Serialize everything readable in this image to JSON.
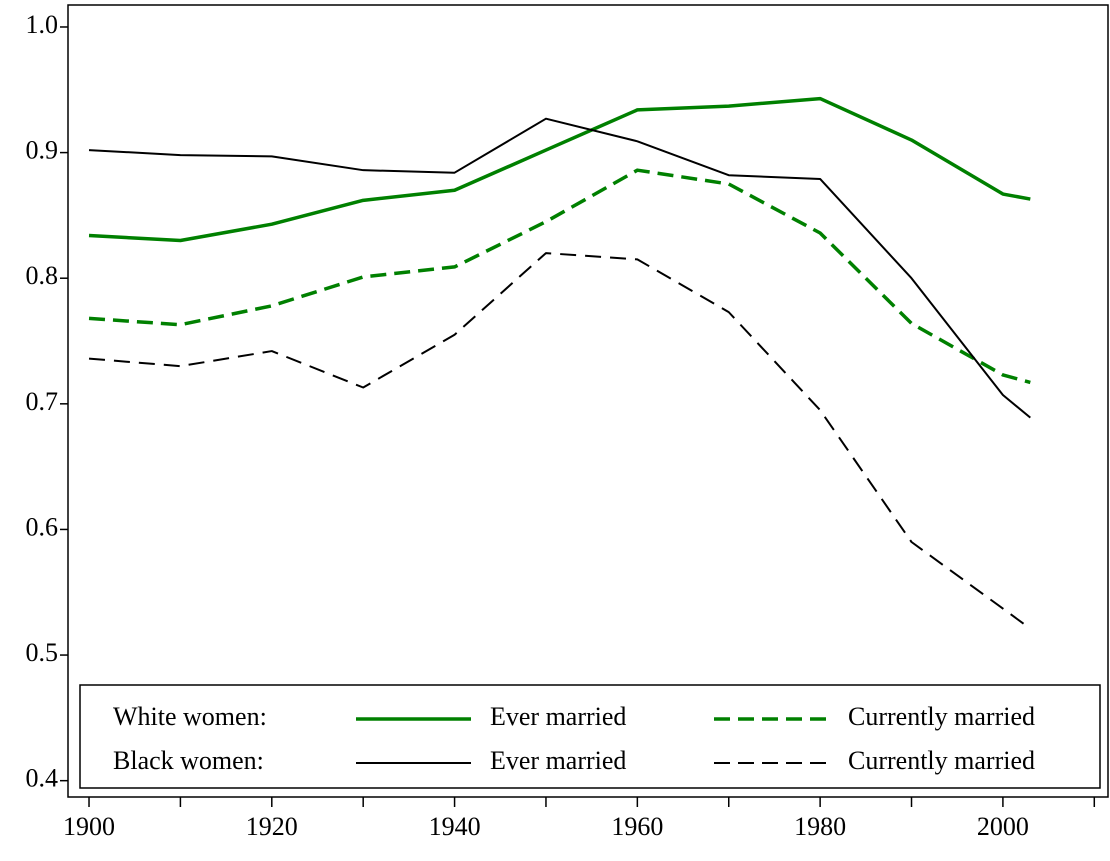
{
  "chart_data": {
    "type": "line",
    "x": [
      1900,
      1910,
      1920,
      1930,
      1940,
      1950,
      1960,
      1970,
      1980,
      1990,
      2000,
      2003
    ],
    "groups": [
      {
        "name": "White women:",
        "series": [
          {
            "name": "Ever married",
            "color": "#008000",
            "dash": "solid",
            "width": 3.5,
            "values": [
              0.834,
              0.83,
              0.843,
              0.862,
              0.87,
              0.902,
              0.934,
              0.937,
              0.943,
              0.91,
              0.867,
              0.863
            ]
          },
          {
            "name": "Currently married",
            "color": "#008000",
            "dash": "dashed",
            "width": 3.5,
            "values": [
              0.768,
              0.763,
              0.778,
              0.801,
              0.809,
              0.845,
              0.886,
              0.875,
              0.836,
              0.764,
              0.723,
              0.717
            ]
          }
        ]
      },
      {
        "name": "Black women:",
        "series": [
          {
            "name": "Ever married",
            "color": "#000000",
            "dash": "solid",
            "width": 2,
            "values": [
              0.902,
              0.898,
              0.897,
              0.886,
              0.884,
              0.927,
              0.909,
              0.882,
              0.879,
              0.8,
              0.707,
              0.689
            ]
          },
          {
            "name": "Currently married",
            "color": "#000000",
            "dash": "dashed",
            "width": 2,
            "values": [
              0.736,
              0.73,
              0.742,
              0.713,
              0.755,
              0.82,
              0.815,
              0.773,
              0.695,
              0.59,
              0.537,
              0.521
            ]
          }
        ]
      }
    ],
    "xlim": [
      1897.7,
      2011.5
    ],
    "xticks": [
      1900,
      1920,
      1940,
      1960,
      1980,
      2000
    ],
    "xminorticks": [
      1910,
      1930,
      1950,
      1970,
      1990,
      2010
    ],
    "ylim": [
      0.387,
      1.0175
    ],
    "yticks": [
      0.4,
      0.5,
      0.6,
      0.7,
      0.8,
      0.9,
      {
        "value": 1,
        "label": "1.0"
      }
    ],
    "legend": "bottom"
  }
}
